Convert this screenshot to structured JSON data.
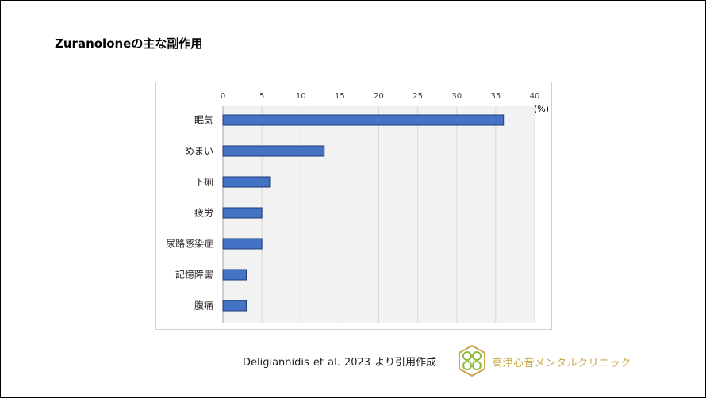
{
  "slide": {
    "title": "Zuranoloneの主な副作用",
    "citation": "Deligiannidis  et al. 2023 より引用作成",
    "clinic_name": "高津心音メンタルクリニック"
  },
  "colors": {
    "bar_fill": "#4472C4",
    "bar_stroke": "#1F3A78",
    "plot_bg": "#F2F2F2",
    "gridline": "#D9D9D9",
    "logo_gold": "#C9A84A",
    "logo_green": "#8DBB3C"
  },
  "chart_data": {
    "type": "bar",
    "orientation": "horizontal",
    "categories": [
      "眠気",
      "めまい",
      "下痢",
      "疲労",
      "尿路感染症",
      "記憶障害",
      "腹痛"
    ],
    "values": [
      36,
      13,
      6,
      5,
      5,
      3,
      3
    ],
    "xlim": [
      0,
      40
    ],
    "xticks": [
      0,
      5,
      10,
      15,
      20,
      25,
      30,
      35,
      40
    ],
    "unit_label": "(%)",
    "axis_position": "top",
    "grid": true
  }
}
